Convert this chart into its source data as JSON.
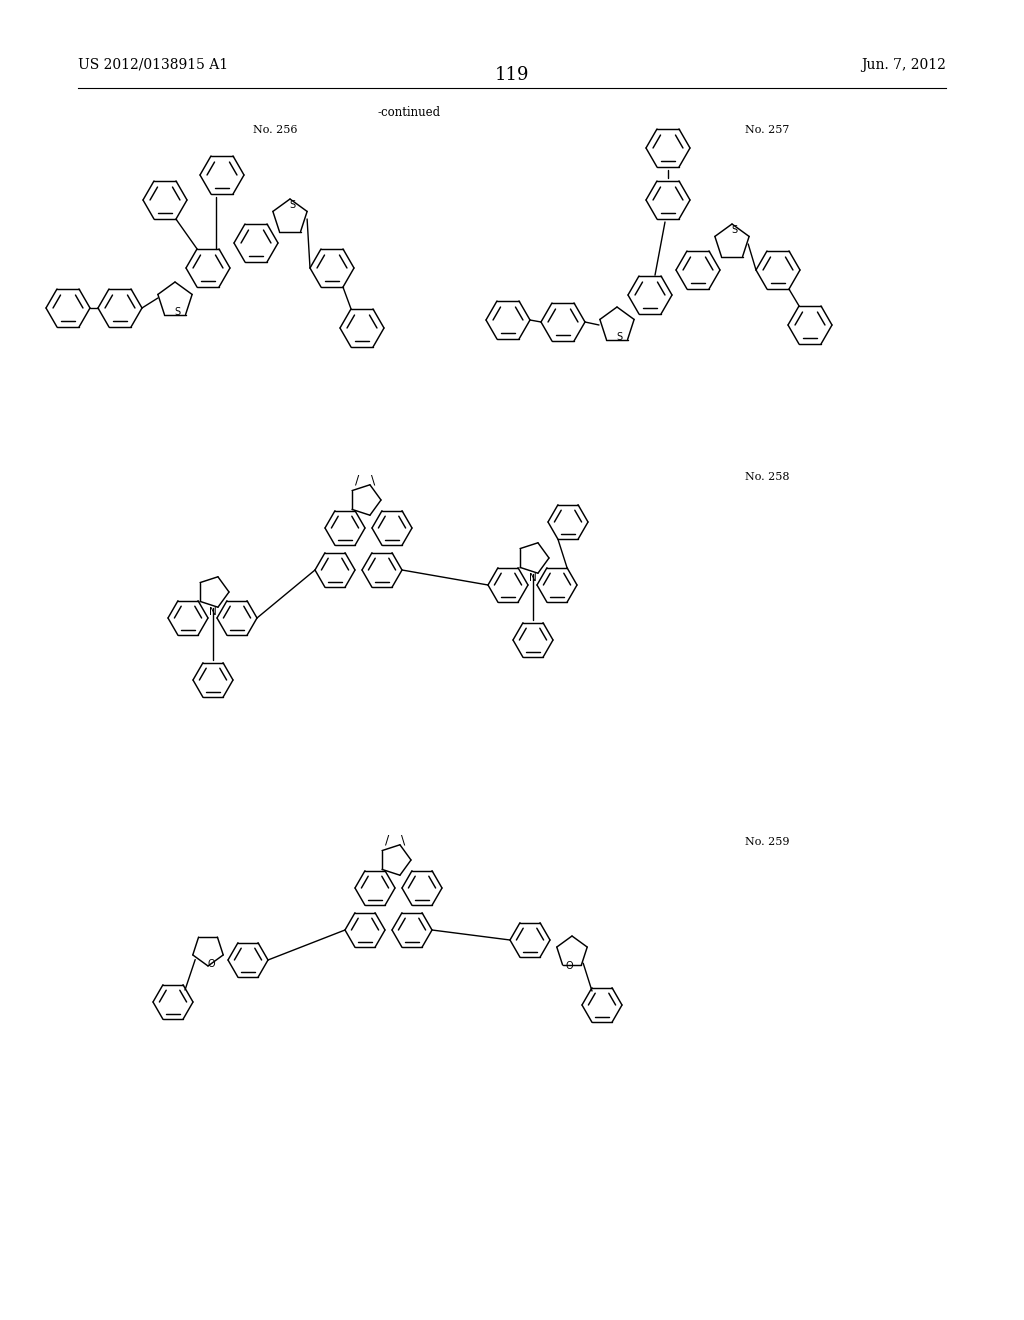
{
  "patent_number": "US 2012/0138915 A1",
  "date": "Jun. 7, 2012",
  "page_number": "119",
  "continued_label": "-continued",
  "no256_label": "No. 256",
  "no257_label": "No. 257",
  "no258_label": "No. 258",
  "no259_label": "No. 259",
  "background": "#ffffff",
  "figsize": [
    10.24,
    13.2
  ],
  "dpi": 100
}
